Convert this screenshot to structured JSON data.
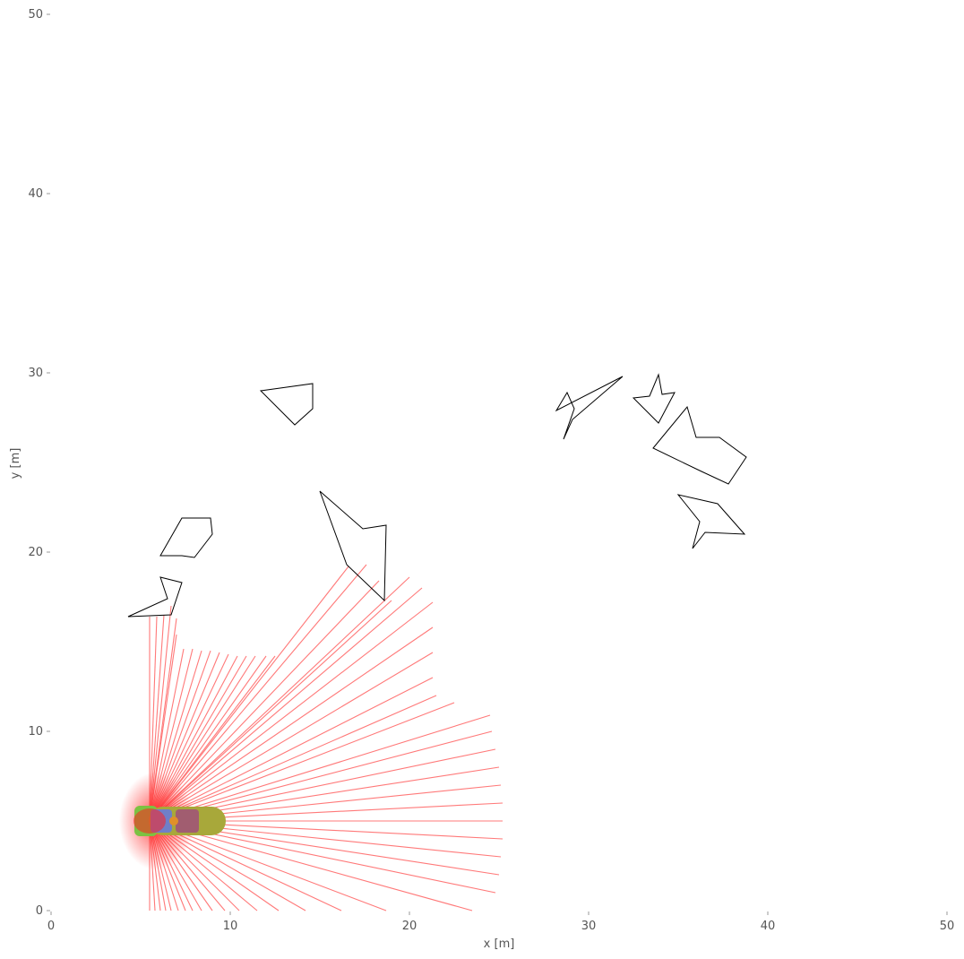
{
  "chart_data": {
    "type": "scatter",
    "title": "",
    "xlabel": "x [m]",
    "ylabel": "y [m]",
    "xlim": [
      0,
      50
    ],
    "ylim": [
      0,
      50
    ],
    "grid": false,
    "x_ticks": [
      "0",
      "10",
      "20",
      "30",
      "40",
      "50"
    ],
    "y_ticks": [
      "0",
      "10",
      "20",
      "30",
      "40",
      "50"
    ],
    "x_tick_values": [
      0,
      10,
      20,
      30,
      40,
      50
    ],
    "y_tick_values": [
      0,
      10,
      20,
      30,
      40,
      50
    ],
    "colors": {
      "ray": "#ff6a6a",
      "obstacle": "#000000",
      "vehicle_green": "#7cc242",
      "vehicle_olive": "#a8a83a",
      "vehicle_blue": "#6f7fc8",
      "vehicle_orange": "#e0902a",
      "vehicle_purple": "#a0507a",
      "glow": "#ff2020"
    },
    "vehicle": {
      "x": 5.5,
      "y": 5.0,
      "heading_deg": 0,
      "length": 4.6,
      "width": 1.6
    },
    "lidar": {
      "origin": [
        5.5,
        5.0
      ],
      "rays": [
        [
          5.5,
          0.0
        ],
        [
          5.8,
          0.0
        ],
        [
          6.1,
          0.0
        ],
        [
          6.4,
          0.0
        ],
        [
          6.7,
          0.0
        ],
        [
          7.1,
          0.0
        ],
        [
          7.5,
          0.0
        ],
        [
          7.9,
          0.0
        ],
        [
          8.4,
          0.0
        ],
        [
          9.0,
          0.0
        ],
        [
          9.7,
          0.0
        ],
        [
          10.5,
          0.0
        ],
        [
          11.5,
          0.0
        ],
        [
          12.7,
          0.0
        ],
        [
          14.2,
          0.0
        ],
        [
          16.2,
          0.0
        ],
        [
          18.7,
          0.0
        ],
        [
          23.5,
          0.0
        ],
        [
          24.8,
          1.0
        ],
        [
          25.0,
          2.0
        ],
        [
          25.1,
          3.0
        ],
        [
          25.2,
          4.0
        ],
        [
          25.2,
          5.0
        ],
        [
          25.2,
          6.0
        ],
        [
          25.1,
          7.0
        ],
        [
          25.0,
          8.0
        ],
        [
          24.8,
          9.0
        ],
        [
          24.6,
          10.0
        ],
        [
          24.5,
          10.9
        ],
        [
          22.5,
          11.6
        ],
        [
          21.5,
          12.0
        ],
        [
          21.3,
          13.0
        ],
        [
          21.3,
          14.4
        ],
        [
          21.3,
          15.8
        ],
        [
          21.3,
          17.2
        ],
        [
          20.7,
          18.0
        ],
        [
          20.0,
          18.6
        ],
        [
          19.0,
          17.3
        ],
        [
          18.3,
          18.4
        ],
        [
          17.6,
          19.3
        ],
        [
          16.6,
          19.2
        ],
        [
          12.5,
          14.2
        ],
        [
          12.0,
          14.2
        ],
        [
          11.4,
          14.2
        ],
        [
          10.9,
          14.2
        ],
        [
          10.4,
          14.2
        ],
        [
          9.9,
          14.3
        ],
        [
          9.4,
          14.4
        ],
        [
          8.9,
          14.5
        ],
        [
          8.4,
          14.5
        ],
        [
          7.9,
          14.6
        ],
        [
          7.4,
          14.6
        ],
        [
          7.0,
          15.4
        ],
        [
          7.0,
          16.3
        ],
        [
          6.7,
          17.0
        ],
        [
          6.3,
          16.5
        ],
        [
          5.9,
          16.4
        ],
        [
          5.5,
          16.4
        ]
      ]
    },
    "obstacles": [
      [
        [
          11.7,
          29.0
        ],
        [
          14.6,
          29.4
        ],
        [
          14.6,
          28.0
        ],
        [
          13.6,
          27.1
        ]
      ],
      [
        [
          4.3,
          16.4
        ],
        [
          6.5,
          17.4
        ],
        [
          6.1,
          18.6
        ],
        [
          7.3,
          18.3
        ],
        [
          6.7,
          16.5
        ]
      ],
      [
        [
          6.1,
          19.8
        ],
        [
          7.3,
          21.9
        ],
        [
          8.9,
          21.9
        ],
        [
          9.0,
          21.0
        ],
        [
          8.0,
          19.7
        ],
        [
          7.3,
          19.8
        ]
      ],
      [
        [
          15.0,
          23.4
        ],
        [
          17.4,
          21.3
        ],
        [
          18.7,
          21.5
        ],
        [
          18.6,
          17.3
        ],
        [
          16.5,
          19.3
        ]
      ],
      [
        [
          28.2,
          27.9
        ],
        [
          28.8,
          28.9
        ],
        [
          29.2,
          28.0
        ],
        [
          28.6,
          26.3
        ],
        [
          29.1,
          27.4
        ],
        [
          31.9,
          29.8
        ]
      ],
      [
        [
          32.5,
          28.6
        ],
        [
          33.4,
          28.7
        ],
        [
          33.9,
          29.9
        ],
        [
          34.1,
          28.8
        ],
        [
          34.8,
          28.9
        ],
        [
          33.9,
          27.2
        ]
      ],
      [
        [
          33.6,
          25.8
        ],
        [
          35.5,
          28.1
        ],
        [
          36.0,
          26.4
        ],
        [
          37.3,
          26.4
        ],
        [
          38.8,
          25.3
        ],
        [
          37.8,
          23.8
        ],
        [
          36.3,
          24.5
        ]
      ],
      [
        [
          35.0,
          23.2
        ],
        [
          37.2,
          22.7
        ],
        [
          38.7,
          21.0
        ],
        [
          36.5,
          21.1
        ],
        [
          35.8,
          20.2
        ],
        [
          36.2,
          21.7
        ]
      ]
    ]
  }
}
